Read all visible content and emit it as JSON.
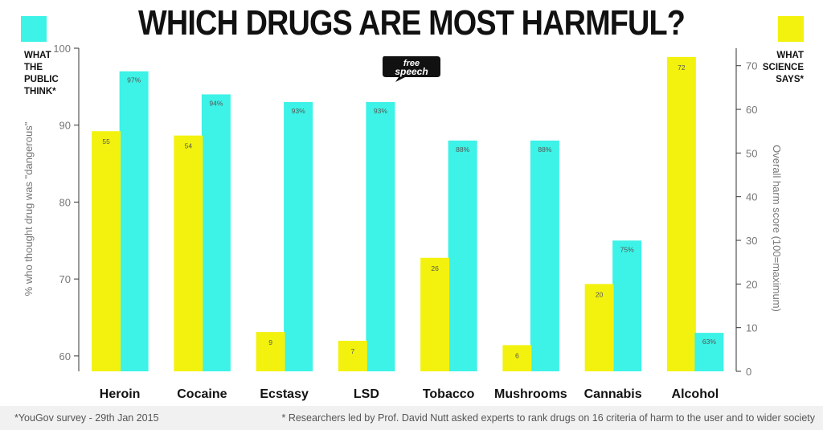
{
  "colors": {
    "public": "#3df2e6",
    "science": "#f2f20e"
  },
  "legend": {
    "public": "WHAT\nTHE\nPUBLIC\nTHINK*",
    "science": "WHAT\nSCIENCE\nSAYS*"
  },
  "logo": {
    "line1": "free",
    "line2": "speech"
  },
  "footer": {
    "left": "*YouGov survey - 29th Jan 2015",
    "right": "* Researchers led by Prof. David Nutt asked experts to rank drugs on 16 criteria of harm to the user and to wider society"
  },
  "chart_data": {
    "type": "bar",
    "title": "WHICH DRUGS ARE MOST HARMFUL?",
    "categories": [
      "Heroin",
      "Cocaine",
      "Ecstasy",
      "LSD",
      "Tobacco",
      "Mushrooms",
      "Cannabis",
      "Alcohol"
    ],
    "y_left": {
      "label": "% who thought drug was \"dangerous\"",
      "min": 58,
      "max": 100,
      "ticks": [
        60,
        70,
        80,
        90,
        100
      ]
    },
    "y_right": {
      "label": "Overall harm score (100=maximum)",
      "min": 0,
      "max": 74,
      "ticks": [
        0,
        10,
        20,
        30,
        40,
        50,
        60,
        70
      ]
    },
    "series": [
      {
        "name": "WHAT THE PUBLIC THINK",
        "axis": "left",
        "values": [
          97,
          94,
          93,
          93,
          88,
          88,
          75,
          63
        ],
        "labels": [
          "97%",
          "94%",
          "93%",
          "93%",
          "88%",
          "88%",
          "75%",
          "63%"
        ]
      },
      {
        "name": "WHAT SCIENCE SAYS",
        "axis": "right",
        "values": [
          55,
          54,
          9,
          7,
          26,
          6,
          20,
          72
        ],
        "labels": [
          "55",
          "54",
          "9",
          "7",
          "26",
          "6",
          "20",
          "72"
        ]
      }
    ],
    "grid": false,
    "legend": "top-corners"
  }
}
